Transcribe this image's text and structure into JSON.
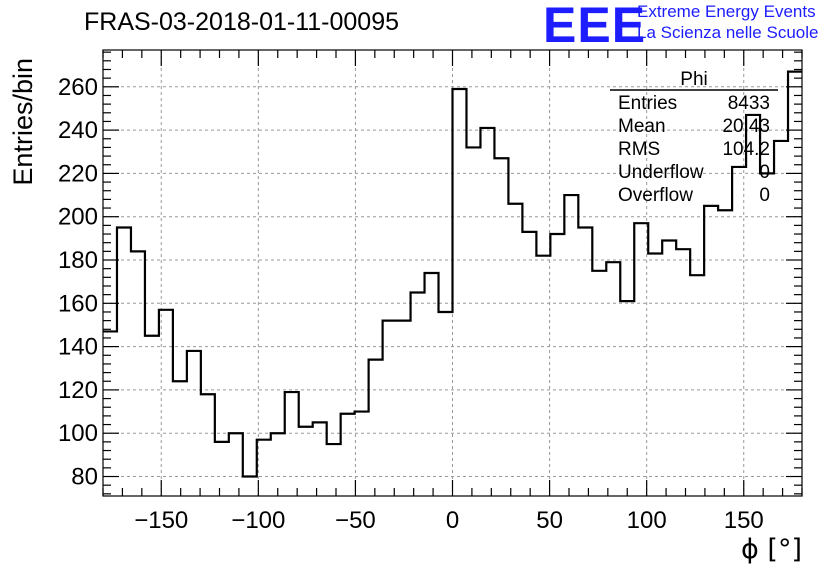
{
  "header": {
    "title": "FRAS-03-2018-01-11-00095"
  },
  "logo": {
    "mark": "EEE",
    "line1": "Extreme Energy Events",
    "line2": "La Scienza nelle Scuole"
  },
  "stats_box": {
    "title": "Phi",
    "rows": [
      {
        "label": "Entries",
        "value": "8433"
      },
      {
        "label": "Mean",
        "value": "20.43"
      },
      {
        "label": "RMS",
        "value": "104.2"
      },
      {
        "label": "Underflow",
        "value": "0"
      },
      {
        "label": "Overflow",
        "value": "0"
      }
    ]
  },
  "colors": {
    "histogram_line": "#000000",
    "grid": "#999999",
    "logo": "#1d1dff"
  },
  "chart_data": {
    "type": "histogram",
    "xlabel": "ϕ [°]",
    "ylabel": "Entries/bin",
    "xlim": [
      -180,
      180
    ],
    "ylim": [
      71,
      277
    ],
    "xticks": [
      -150,
      -100,
      -50,
      0,
      50,
      100,
      150
    ],
    "yticks": [
      80,
      100,
      120,
      140,
      160,
      180,
      200,
      220,
      240,
      260
    ],
    "grid": true,
    "bin_width": 7.2,
    "bin_start": -180,
    "values": [
      147,
      195,
      184,
      145,
      157,
      124,
      138,
      118,
      96,
      100,
      80,
      97,
      100,
      119,
      103,
      105,
      95,
      109,
      110,
      134,
      152,
      152,
      165,
      174,
      156,
      259,
      232,
      241,
      227,
      206,
      193,
      182,
      192,
      210,
      195,
      175,
      179,
      161,
      197,
      183,
      189,
      185,
      173,
      205,
      203,
      223,
      247,
      220,
      235,
      267
    ]
  }
}
